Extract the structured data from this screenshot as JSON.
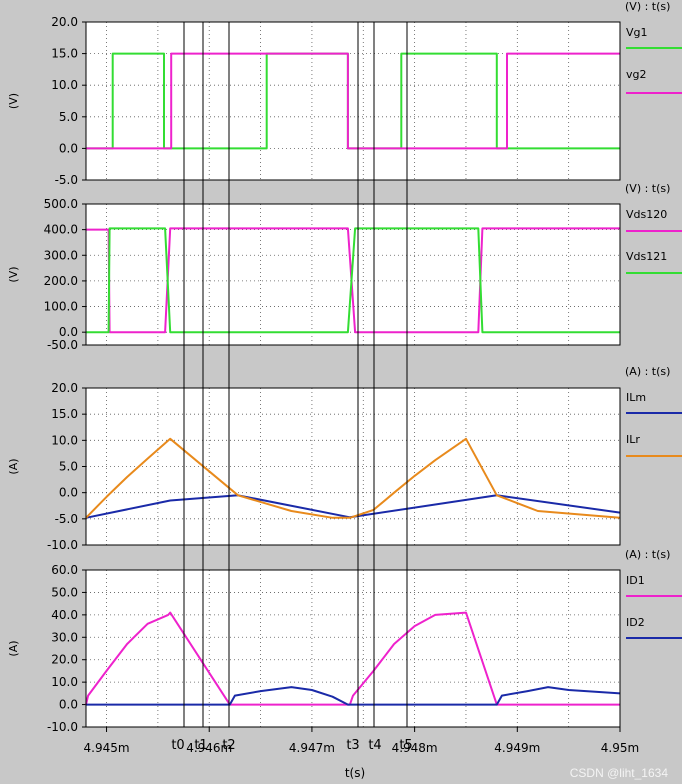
{
  "chart_data": [
    {
      "type": "line",
      "ylabel": "(V)",
      "unit_label": "(V) : t(s)",
      "ylim": [
        -5,
        20
      ],
      "yticks": [
        "20.0",
        "15.0",
        "10.0",
        "5.0",
        "0.0",
        "-5.0"
      ],
      "xlim": [
        4.9448,
        4.95
      ],
      "series": [
        {
          "name": "Vg1",
          "color": "#33dd33",
          "x": [
            4.9448,
            4.94506,
            4.94506,
            4.94556,
            4.94556,
            4.94656,
            4.94656,
            4.94735,
            4.94735,
            4.94787,
            4.94787,
            4.9488,
            4.9488,
            4.95
          ],
          "y": [
            0,
            0,
            15,
            15,
            0,
            0,
            15,
            15,
            0,
            0,
            15,
            15,
            0,
            0
          ]
        },
        {
          "name": "vg2",
          "color": "#ee22cc",
          "x": [
            4.9448,
            4.94563,
            4.94563,
            4.94735,
            4.94735,
            4.9489,
            4.9489,
            4.95
          ],
          "y": [
            0,
            0,
            15,
            15,
            0,
            0,
            15,
            15
          ]
        }
      ]
    },
    {
      "type": "line",
      "ylabel": "(V)",
      "unit_label": "(V) : t(s)",
      "ylim": [
        -50,
        500
      ],
      "yticks": [
        "500.0",
        "400.0",
        "300.0",
        "200.0",
        "100.0",
        "0.0",
        "-50.0"
      ],
      "xlim": [
        4.9448,
        4.95
      ],
      "series": [
        {
          "name": "Vds120",
          "color": "#ee22cc",
          "x": [
            4.9448,
            4.94502,
            4.94503,
            4.94557,
            4.94562,
            4.94735,
            4.94742,
            4.94862,
            4.94866,
            4.95
          ],
          "y": [
            400,
            400,
            0,
            0,
            405,
            405,
            0,
            0,
            405,
            405
          ]
        },
        {
          "name": "Vds121",
          "color": "#33dd33",
          "x": [
            4.9448,
            4.94502,
            4.94503,
            4.94557,
            4.94562,
            4.94735,
            4.94742,
            4.94862,
            4.94866,
            4.95
          ],
          "y": [
            0,
            0,
            405,
            405,
            0,
            0,
            405,
            405,
            0,
            0
          ]
        }
      ]
    },
    {
      "type": "line",
      "ylabel": "(A)",
      "unit_label": "(A) : t(s)",
      "ylim": [
        -10,
        20
      ],
      "yticks": [
        "20.0",
        "15.0",
        "10.0",
        "5.0",
        "0.0",
        "-5.0",
        "-10.0"
      ],
      "xlim": [
        4.9448,
        4.95
      ],
      "series": [
        {
          "name": "ILm",
          "color": "#1a2aa8",
          "x": [
            4.9448,
            4.94562,
            4.94628,
            4.94737,
            4.9488,
            4.95
          ],
          "y": [
            -4.8,
            -1.5,
            -0.5,
            -4.7,
            -0.5,
            -3.8
          ]
        },
        {
          "name": "ILr",
          "color": "#e88a1c",
          "x": [
            4.9448,
            4.945,
            4.9452,
            4.9454,
            4.94562,
            4.94628,
            4.9468,
            4.9472,
            4.94737,
            4.9476,
            4.9478,
            4.948,
            4.9482,
            4.9485,
            4.9488,
            4.9492,
            4.95
          ],
          "y": [
            -4.8,
            -0.8,
            3,
            6.5,
            10.3,
            -0.5,
            -3.5,
            -4.8,
            -4.8,
            -3.3,
            0,
            3.2,
            6.2,
            10.3,
            -0.5,
            -3.5,
            -4.8
          ]
        }
      ]
    },
    {
      "type": "line",
      "ylabel": "(A)",
      "unit_label": "(A) : t(s)",
      "ylim": [
        -10,
        60
      ],
      "yticks": [
        "60.0",
        "50.0",
        "40.0",
        "30.0",
        "20.0",
        "10.0",
        "0.0",
        "-10.0"
      ],
      "xlim": [
        4.9448,
        4.95
      ],
      "xticks": [
        "4.945m",
        "4.946m",
        "4.947m",
        "4.948m",
        "4.949m",
        "4.95m"
      ],
      "xlabel": "t(s)",
      "markers": [
        "t0",
        "t1",
        "t2",
        "t3",
        "t4",
        "t5"
      ],
      "series": [
        {
          "name": "ID1",
          "color": "#ee22cc",
          "x": [
            4.9448,
            4.94482,
            4.945,
            4.9452,
            4.9454,
            4.9456,
            4.94562,
            4.9462,
            4.94628,
            4.94737,
            4.9474,
            4.9476,
            4.9478,
            4.948,
            4.9482,
            4.9485,
            4.9488,
            4.9489,
            4.95
          ],
          "y": [
            0,
            4,
            15,
            27,
            36,
            40,
            41,
            0,
            0,
            0,
            4,
            15,
            27,
            35,
            40,
            41,
            0,
            0,
            0
          ]
        },
        {
          "name": "ID2",
          "color": "#1a2aa8",
          "x": [
            4.9448,
            4.9462,
            4.94625,
            4.9465,
            4.9468,
            4.947,
            4.9472,
            4.94735,
            4.9488,
            4.94885,
            4.9491,
            4.9493,
            4.9495,
            4.95
          ],
          "y": [
            0,
            0,
            4,
            6,
            7.8,
            6.5,
            3.5,
            0,
            0,
            4,
            6,
            7.8,
            6.5,
            5
          ]
        }
      ]
    }
  ],
  "watermark": "CSDN @liht_1634"
}
